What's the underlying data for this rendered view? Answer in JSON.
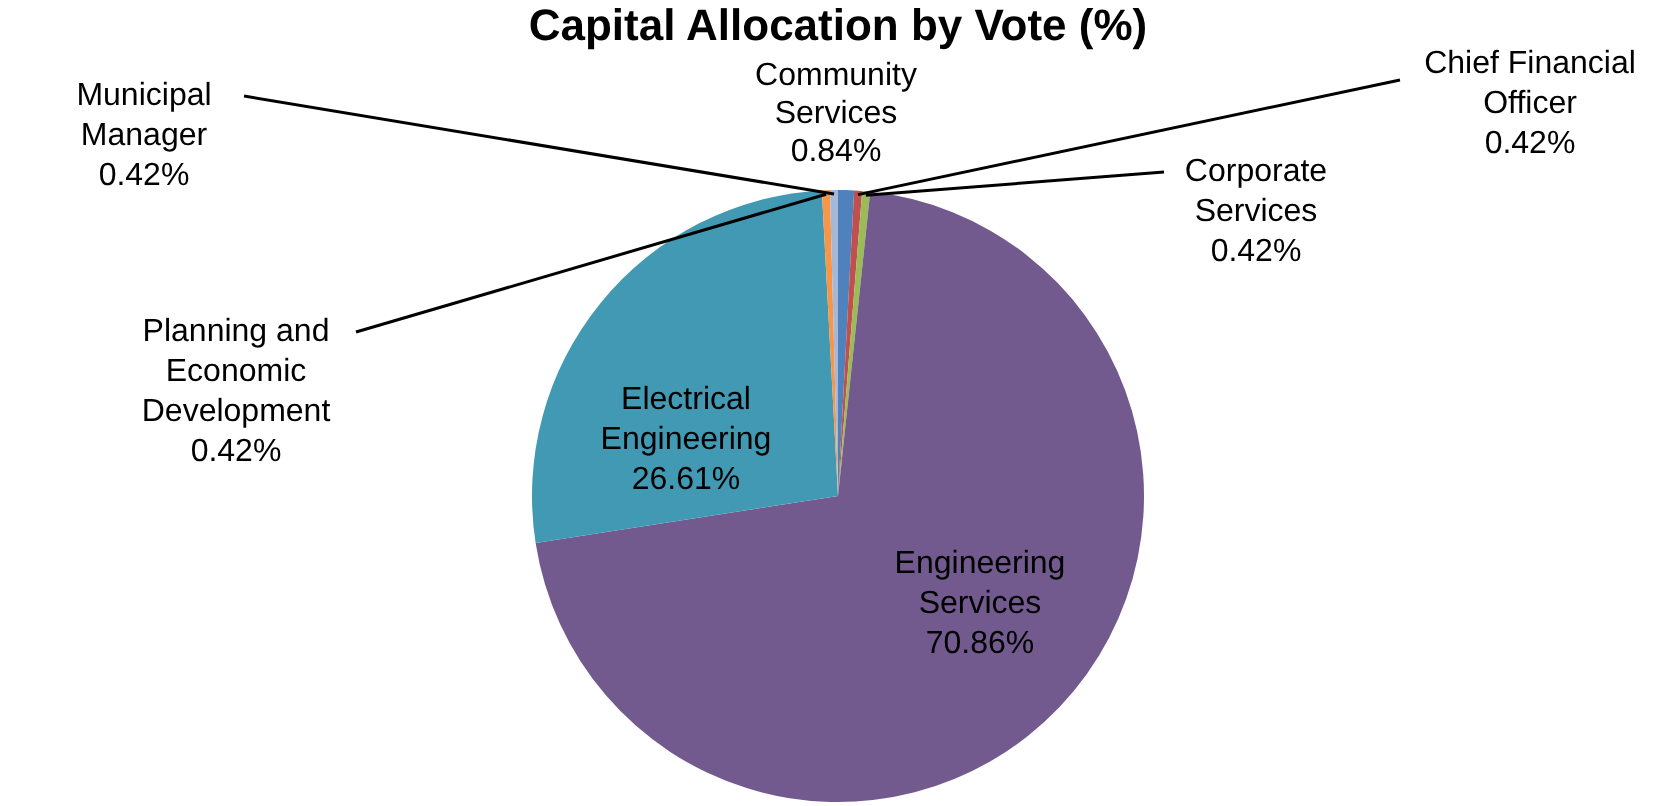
{
  "chart_data": {
    "type": "pie",
    "title": "Capital Allocation by Vote (%)",
    "categories": [
      "Community Services",
      "Chief Financial Officer",
      "Corporate Services",
      "Engineering Services",
      "Electrical Engineering",
      "Planning and Economic Development",
      "Municipal Manager"
    ],
    "values": [
      0.84,
      0.42,
      0.42,
      70.86,
      26.61,
      0.42,
      0.42
    ],
    "value_labels": [
      "0.84%",
      "0.42%",
      "0.42%",
      "70.86%",
      "26.61%",
      "0.42%",
      "0.42%"
    ],
    "colors": [
      "#4f81bd",
      "#c0504d",
      "#9bbb59",
      "#725a8f",
      "#4299b3",
      "#f79646",
      "#a5b8d8"
    ],
    "legend": false
  }
}
